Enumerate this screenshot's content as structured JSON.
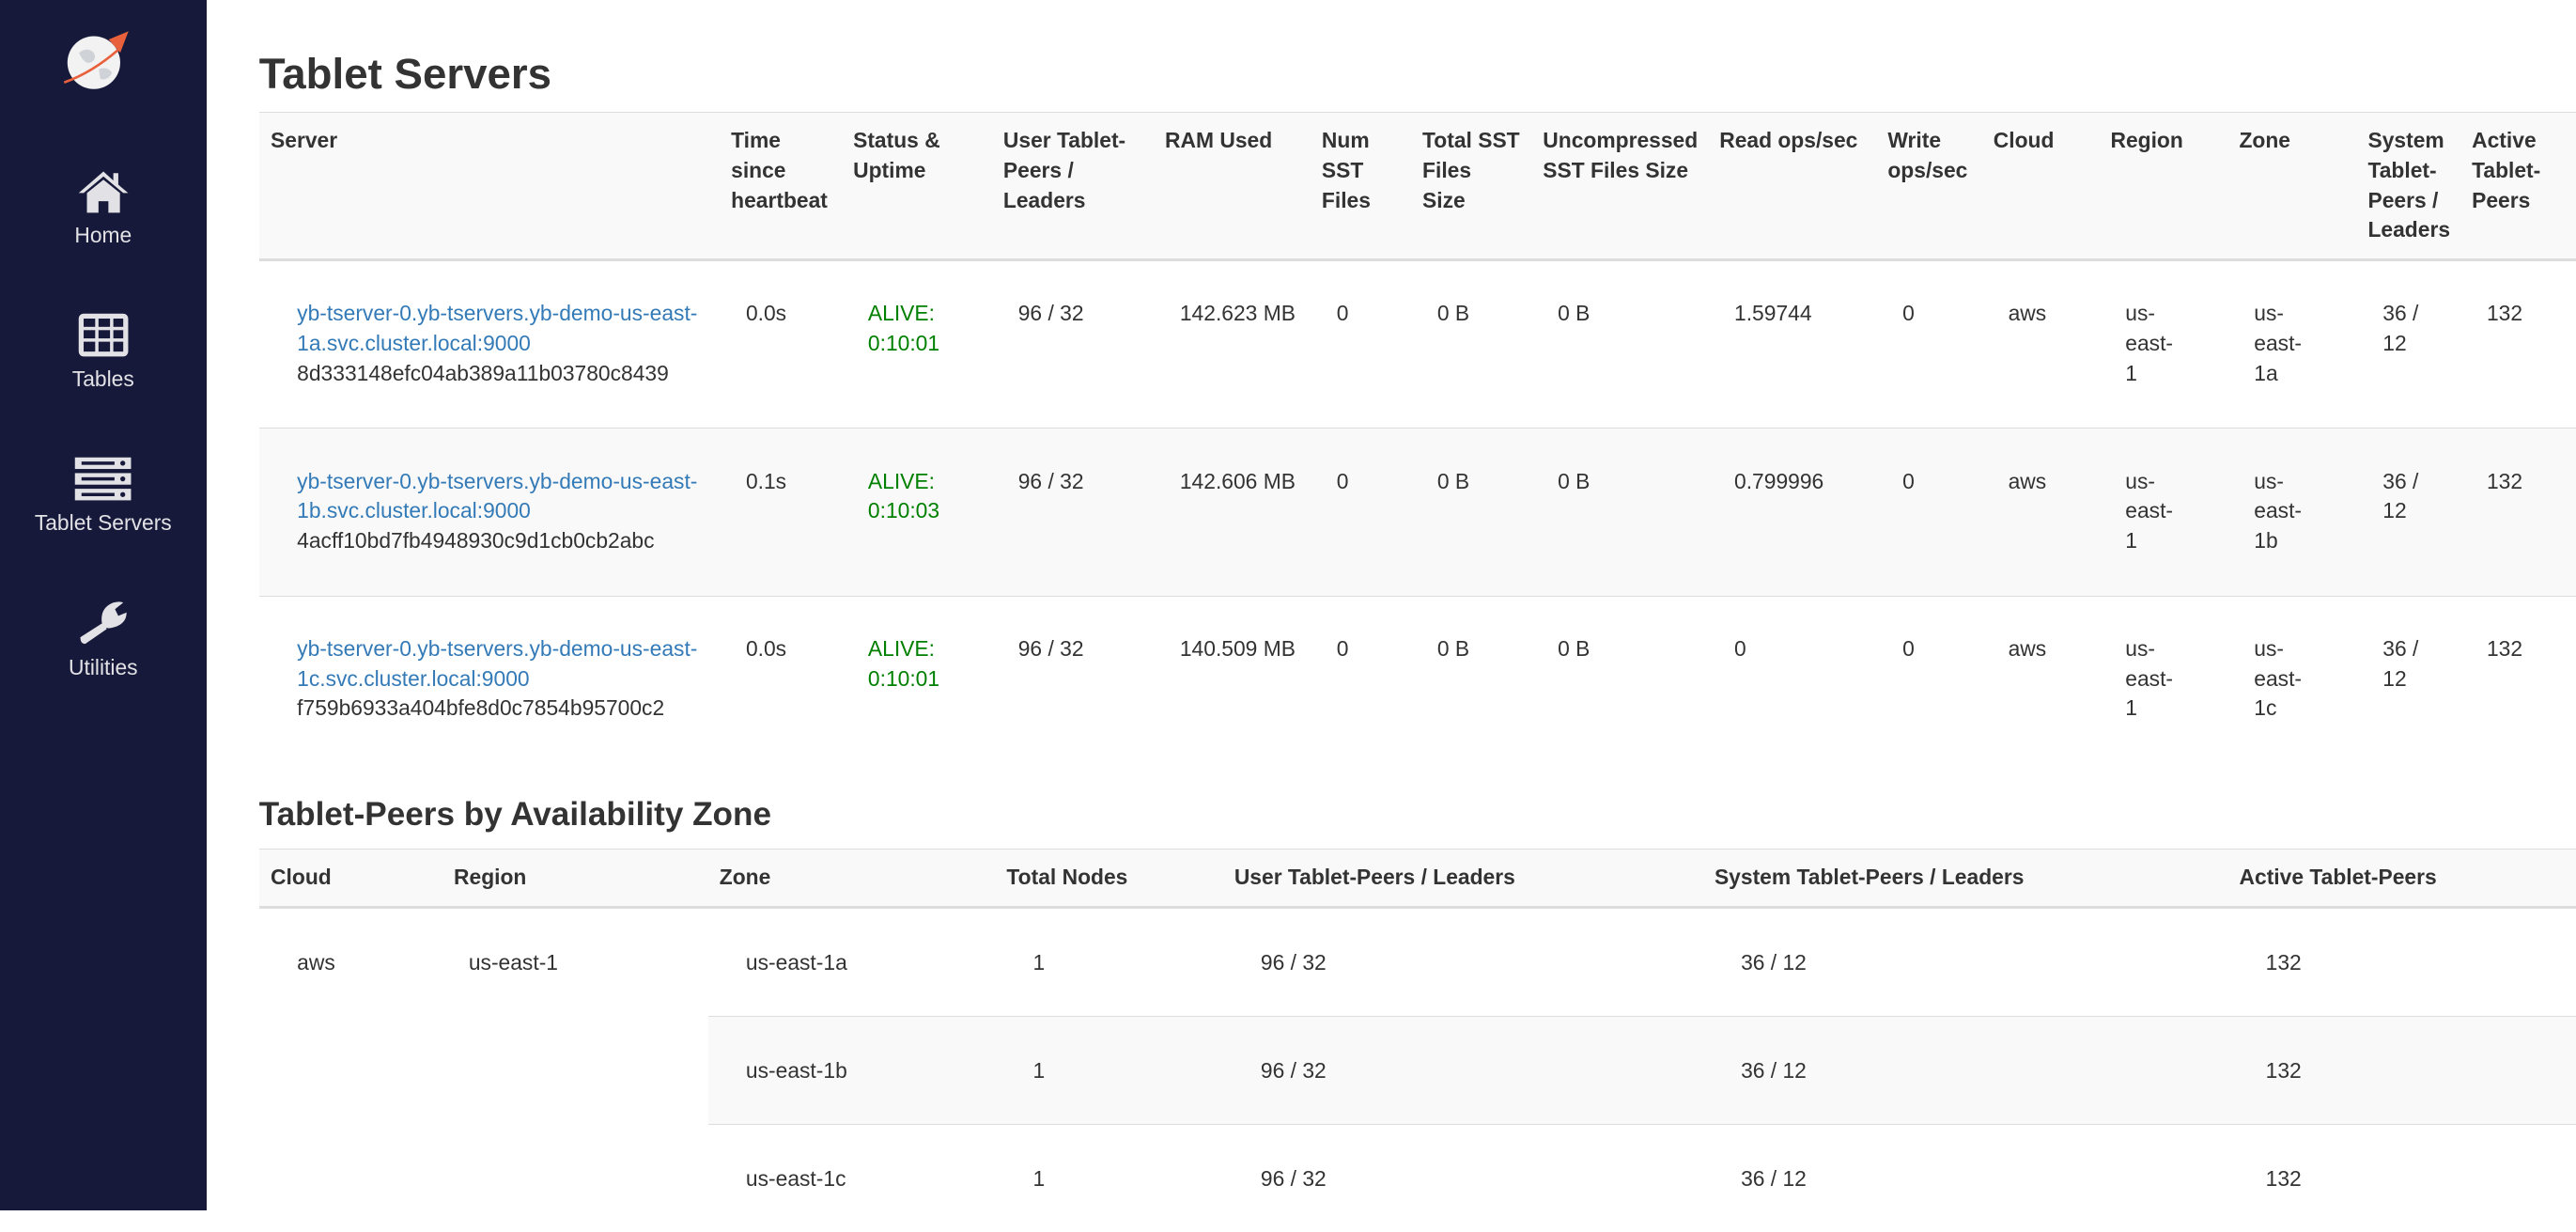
{
  "sidebar": {
    "items": [
      {
        "label": "Home",
        "icon": "home-icon"
      },
      {
        "label": "Tables",
        "icon": "table-icon"
      },
      {
        "label": "Tablet Servers",
        "icon": "server-icon"
      },
      {
        "label": "Utilities",
        "icon": "wrench-icon"
      }
    ],
    "colors": {
      "background": "#16193a",
      "logo_accent": "#e8613c"
    }
  },
  "servers": {
    "title": "Tablet Servers",
    "headers": [
      "Server",
      "Time since heartbeat",
      "Status & Uptime",
      "User Tablet-Peers / Leaders",
      "RAM Used",
      "Num SST Files",
      "Total SST Files Size",
      "Uncompressed SST Files Size",
      "Read ops/sec",
      "Write ops/sec",
      "Cloud",
      "Region",
      "Zone",
      "System Tablet-Peers / Leaders",
      "Active Tablet-Peers"
    ],
    "rows": [
      {
        "host": "yb-tserver-0.yb-tservers.yb-demo-us-east-1a.svc.cluster.local:9000",
        "uuid": "8d333148efc04ab389a11b03780c8439",
        "heartbeat": "0.0s",
        "status": "ALIVE: 0:10:01",
        "user_peers": "96 / 32",
        "ram": "142.623 MB",
        "num_sst": "0",
        "total_sst": "0 B",
        "uncompressed_sst": "0 B",
        "read_ops": "1.59744",
        "write_ops": "0",
        "cloud": "aws",
        "region": "us-east-1",
        "zone": "us-east-1a",
        "system_peers": "36 / 12",
        "active_peers": "132"
      },
      {
        "host": "yb-tserver-0.yb-tservers.yb-demo-us-east-1b.svc.cluster.local:9000",
        "uuid": "4acff10bd7fb4948930c9d1cb0cb2abc",
        "heartbeat": "0.1s",
        "status": "ALIVE: 0:10:03",
        "user_peers": "96 / 32",
        "ram": "142.606 MB",
        "num_sst": "0",
        "total_sst": "0 B",
        "uncompressed_sst": "0 B",
        "read_ops": "0.799996",
        "write_ops": "0",
        "cloud": "aws",
        "region": "us-east-1",
        "zone": "us-east-1b",
        "system_peers": "36 / 12",
        "active_peers": "132"
      },
      {
        "host": "yb-tserver-0.yb-tservers.yb-demo-us-east-1c.svc.cluster.local:9000",
        "uuid": "f759b6933a404bfe8d0c7854b95700c2",
        "heartbeat": "0.0s",
        "status": "ALIVE: 0:10:01",
        "user_peers": "96 / 32",
        "ram": "140.509 MB",
        "num_sst": "0",
        "total_sst": "0 B",
        "uncompressed_sst": "0 B",
        "read_ops": "0",
        "write_ops": "0",
        "cloud": "aws",
        "region": "us-east-1",
        "zone": "us-east-1c",
        "system_peers": "36 / 12",
        "active_peers": "132"
      }
    ],
    "colors": {
      "link": "#337ab7",
      "alive": "#008000"
    }
  },
  "zones": {
    "title": "Tablet-Peers by Availability Zone",
    "headers": [
      "Cloud",
      "Region",
      "Zone",
      "Total Nodes",
      "User Tablet-Peers / Leaders",
      "System Tablet-Peers / Leaders",
      "Active Tablet-Peers"
    ],
    "cloud": "aws",
    "region": "us-east-1",
    "rows": [
      {
        "zone": "us-east-1a",
        "nodes": "1",
        "user": "96 / 32",
        "system": "36 / 12",
        "active": "132"
      },
      {
        "zone": "us-east-1b",
        "nodes": "1",
        "user": "96 / 32",
        "system": "36 / 12",
        "active": "132"
      },
      {
        "zone": "us-east-1c",
        "nodes": "1",
        "user": "96 / 32",
        "system": "36 / 12",
        "active": "132"
      }
    ]
  }
}
